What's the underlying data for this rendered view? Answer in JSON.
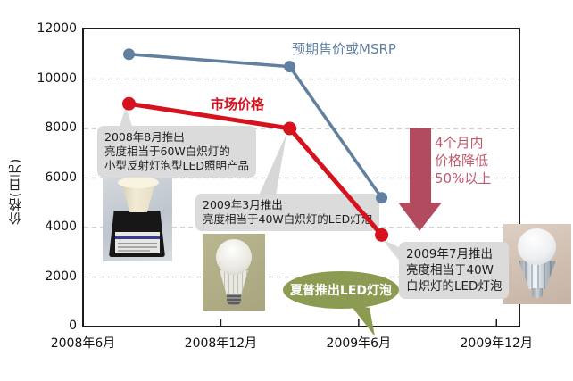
{
  "page": {
    "background": "#ffffff"
  },
  "chart_data": {
    "type": "line",
    "title": "",
    "xlabel": "",
    "ylabel": "价格(日元)",
    "ylim": [
      0,
      12000
    ],
    "yticks": [
      0,
      2000,
      4000,
      6000,
      8000,
      10000,
      12000
    ],
    "x_range_months": [
      0,
      19
    ],
    "x_ticks": [
      {
        "label": "2008年6月",
        "month": 0
      },
      {
        "label": "2008年12月",
        "month": 6
      },
      {
        "label": "2009年6月",
        "month": 12
      },
      {
        "label": "2009年12月",
        "month": 18
      }
    ],
    "grid": "horizontal-dashed",
    "legend": "inline-labels",
    "series": [
      {
        "name": "预期售价或MSRP",
        "color": "#617f9f",
        "points": [
          {
            "date": "2008年8月",
            "month": 2,
            "value": 11000
          },
          {
            "date": "2009年3月",
            "month": 9,
            "value": 10500
          },
          {
            "date": "2009年7月",
            "month": 13,
            "value": 5200
          }
        ]
      },
      {
        "name": "市场价格",
        "color": "#d5121e",
        "points": [
          {
            "date": "2008年8月",
            "month": 2,
            "value": 9000
          },
          {
            "date": "2009年3月",
            "month": 9,
            "value": 8000
          },
          {
            "date": "2009年7月",
            "month": 13,
            "value": 3700
          }
        ]
      }
    ]
  },
  "annotations": {
    "callout1": "2008年8月推出\n亮度相当于60W白炽灯的\n小型反射灯泡型LED照明产品",
    "callout2": "2009年3月推出\n亮度相当于40W白炽灯的LED灯泡",
    "callout3": "2009年7月推出\n亮度相当于40W\n白炽灯的LED灯泡",
    "price_drop_note": "4个月内\n价格降低\n50%以上",
    "bubble": "夏普推出LED灯泡"
  },
  "images": [
    {
      "name": "reflector-led-lamp-photo",
      "desc": "小型反射灯泡型LED照明产品"
    },
    {
      "name": "white-led-bulb-photo",
      "desc": "40W白炽灯亮度LED灯泡"
    },
    {
      "name": "silver-led-bulb-photo",
      "desc": "40W白炽灯亮度LED灯泡"
    }
  ],
  "colors": {
    "msrp_line": "#617f9f",
    "market_line": "#d5121e",
    "arrow": "#b24b5d",
    "arrow_text": "#c05a6b",
    "bubble": "#8c9b52",
    "callout_bg": "#dbdbdb",
    "axis": "#1c1c1c",
    "grid": "#b3b3b3"
  }
}
